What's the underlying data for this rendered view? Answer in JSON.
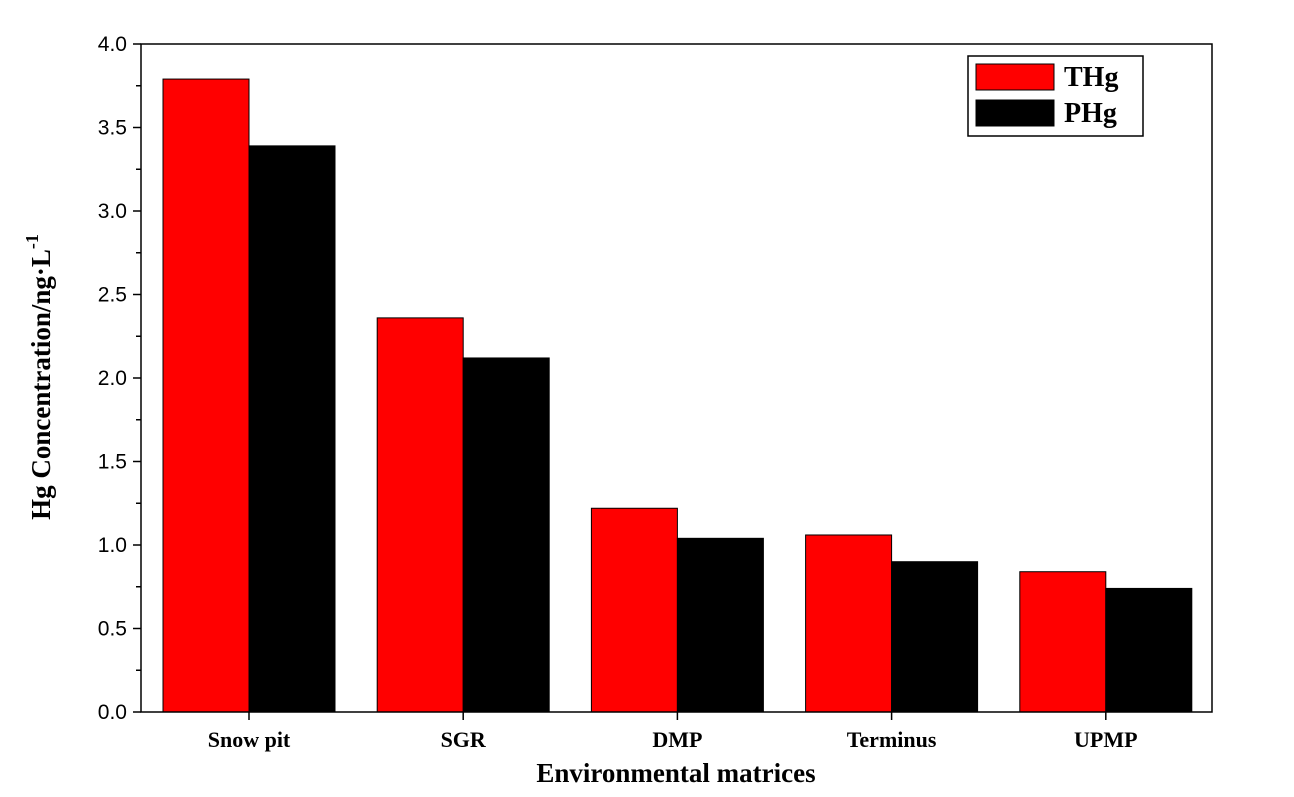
{
  "chart_data": {
    "type": "bar",
    "categories": [
      "Snow pit",
      "SGR",
      "DMP",
      "Terminus",
      "UPMP"
    ],
    "series": [
      {
        "name": "THg",
        "values": [
          3.79,
          2.36,
          1.22,
          1.06,
          0.84
        ],
        "color": "#ff0000"
      },
      {
        "name": "PHg",
        "values": [
          3.39,
          2.12,
          1.04,
          0.9,
          0.74
        ],
        "color": "#000000"
      }
    ],
    "xlabel": "Environmental matrices",
    "ylabel": "Hg Concentration/ng·L",
    "ylabel_superscript": "-1",
    "ylim": [
      0,
      4.0
    ],
    "yticks": [
      "0.0",
      "0.5",
      "1.0",
      "1.5",
      "2.0",
      "2.5",
      "3.0",
      "3.5",
      "4.0"
    ],
    "yticks_minor_step": 0.25,
    "grid": false,
    "legend_position": "top-right"
  }
}
